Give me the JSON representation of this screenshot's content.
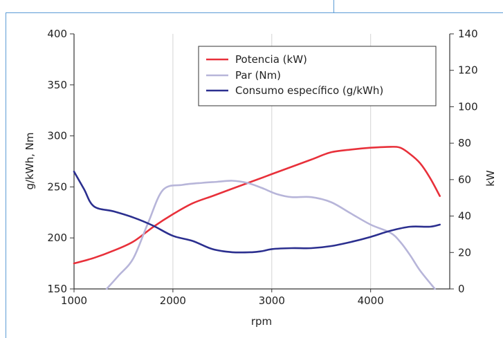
{
  "chart_data": {
    "type": "line",
    "xlabel": "rpm",
    "ylabel": "g/kWh, Nm",
    "y2label": "kW",
    "xlim": [
      1000,
      4800
    ],
    "ylim": [
      150,
      400
    ],
    "y2lim": [
      0,
      140
    ],
    "xticks": [
      "1000",
      "2000",
      "3000",
      "4000"
    ],
    "yticks": [
      "400",
      "350",
      "300",
      "250",
      "200",
      "150"
    ],
    "y2ticks": [
      "140",
      "120",
      "100",
      "80",
      "60",
      "40",
      "20",
      "0"
    ],
    "grid": "vertical",
    "legend_position": "top-right",
    "series": [
      {
        "name": "Potencia (kW)",
        "axis": "right",
        "color": "#e8303a",
        "x": [
          1000,
          1200,
          1400,
          1600,
          1800,
          2000,
          2200,
          2400,
          2600,
          2800,
          3000,
          3200,
          3400,
          3600,
          3800,
          4000,
          4200,
          4300,
          4400,
          4500,
          4600,
          4700
        ],
        "y": [
          14,
          17,
          21,
          26,
          34,
          41,
          47,
          51,
          55,
          59,
          63,
          67,
          71,
          75,
          76.5,
          77.5,
          78,
          77.5,
          74,
          69,
          61,
          51
        ]
      },
      {
        "name": "Par (Nm)",
        "color": "#b7b5d9",
        "x": [
          1330,
          1450,
          1600,
          1750,
          1900,
          2100,
          2300,
          2450,
          2600,
          2750,
          2900,
          3050,
          3200,
          3400,
          3600,
          3800,
          4000,
          4200,
          4300,
          4400,
          4500,
          4650
        ],
        "y": [
          150,
          163,
          180,
          215,
          247,
          252,
          254,
          255,
          256,
          254,
          249,
          243,
          240,
          240,
          235,
          224,
          213,
          205,
          196,
          183,
          168,
          150
        ]
      },
      {
        "name": "Consumo específico (g/kWh)",
        "color": "#2b2f8f",
        "x": [
          1000,
          1100,
          1200,
          1400,
          1600,
          1800,
          2000,
          2200,
          2400,
          2600,
          2800,
          2900,
          3000,
          3200,
          3400,
          3600,
          3800,
          4000,
          4200,
          4400,
          4600,
          4700
        ],
        "y": [
          265,
          248,
          231,
          226,
          220,
          212,
          202,
          197,
          189,
          186,
          186,
          187,
          189,
          190,
          190,
          192,
          196,
          201,
          207,
          211,
          211,
          213
        ]
      }
    ]
  }
}
